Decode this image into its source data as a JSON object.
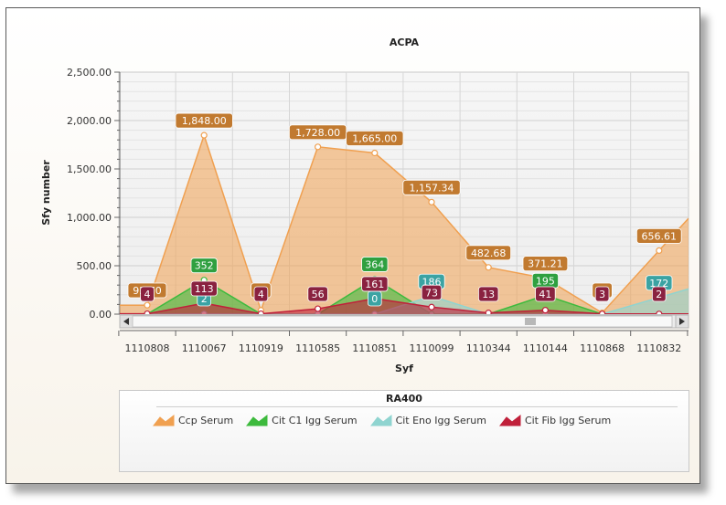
{
  "chart_data": {
    "type": "area",
    "title": "ACPA",
    "xlabel": "Syf",
    "ylabel": "Sfy number",
    "ylim": [
      0,
      2500
    ],
    "yticks": [
      "0.00",
      "500.00",
      "1,000.00",
      "1,500.00",
      "2,000.00",
      "2,500.00"
    ],
    "categories": [
      "1110808",
      "1110067",
      "1110919",
      "1110585",
      "1110851",
      "1110099",
      "1110344",
      "1110144",
      "1110868",
      "1110832"
    ],
    "grid": true,
    "legend_title": "RA400",
    "legend_position": "bottom",
    "scrollbar": true,
    "series": [
      {
        "name": "Ccp Serum",
        "color": "#f0a050",
        "values": [
          92.7,
          1848,
          40,
          1728,
          1665,
          1157.34,
          482.68,
          371.21,
          13,
          656.61
        ],
        "labels": [
          "92.70",
          "1,848.00",
          "40",
          "1,728.00",
          "1,665.00",
          "1,157.34",
          "482.68",
          "371.21",
          "13",
          "656.61"
        ]
      },
      {
        "name": "Cit C1 Igg Serum",
        "color": "#3dba3d",
        "values": [
          0,
          352,
          0,
          0,
          364,
          0,
          0,
          195,
          0,
          0
        ],
        "labels": [
          "",
          "352",
          "",
          "",
          "364",
          "",
          "",
          "195",
          "",
          ""
        ]
      },
      {
        "name": "Cit Eno Igg Serum",
        "color": "#8fd4d0",
        "values": [
          0,
          2,
          0,
          0,
          0,
          186,
          0,
          0,
          0,
          172
        ],
        "labels": [
          "",
          "2",
          "",
          "",
          "0",
          "186",
          "",
          "",
          "",
          "172"
        ]
      },
      {
        "name": "Cit Fib Igg Serum",
        "color": "#c0203a",
        "values": [
          4,
          113,
          4,
          56,
          161,
          73,
          13,
          41,
          3,
          2
        ],
        "labels": [
          "4",
          "113",
          "4",
          "56",
          "161",
          "73",
          "13",
          "41",
          "3",
          "2"
        ]
      }
    ]
  }
}
